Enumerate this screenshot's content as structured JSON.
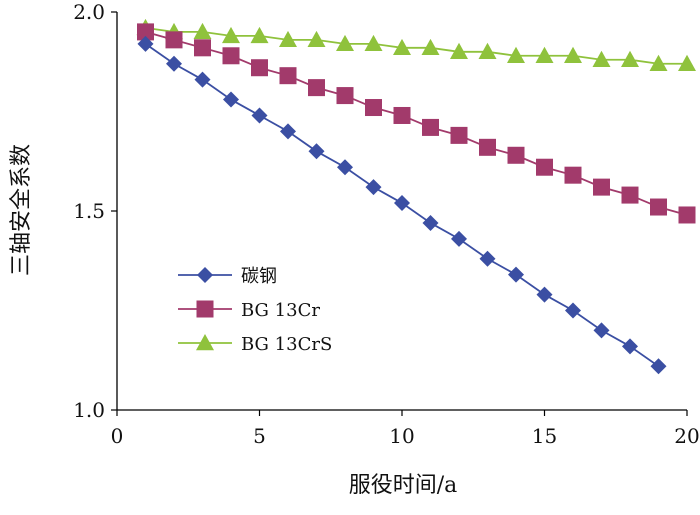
{
  "chart_data": {
    "type": "line",
    "xlabel": "服役时间/a",
    "ylabel": "三轴安全系数",
    "xlim": [
      0,
      20
    ],
    "ylim": [
      1.0,
      2.0
    ],
    "x_ticks": [
      "0",
      "5",
      "10",
      "15",
      "20"
    ],
    "y_ticks": [
      "1.0",
      "1.5",
      "2.0"
    ],
    "grid": false,
    "legend_position": "lower-left",
    "series": [
      {
        "name": "碳钢",
        "marker": "diamond",
        "color": "#3b4fa3",
        "x": [
          1,
          2,
          3,
          4,
          5,
          6,
          7,
          8,
          9,
          10,
          11,
          12,
          13,
          14,
          15,
          16,
          17,
          18,
          19
        ],
        "y": [
          1.92,
          1.87,
          1.83,
          1.78,
          1.74,
          1.7,
          1.65,
          1.61,
          1.56,
          1.52,
          1.47,
          1.43,
          1.38,
          1.34,
          1.29,
          1.25,
          1.2,
          1.16,
          1.11
        ]
      },
      {
        "name": "BG 13Cr",
        "marker": "square",
        "color": "#a23a6b",
        "x": [
          1,
          2,
          3,
          4,
          5,
          6,
          7,
          8,
          9,
          10,
          11,
          12,
          13,
          14,
          15,
          16,
          17,
          18,
          19,
          20
        ],
        "y": [
          1.95,
          1.93,
          1.91,
          1.89,
          1.86,
          1.84,
          1.81,
          1.79,
          1.76,
          1.74,
          1.71,
          1.69,
          1.66,
          1.64,
          1.61,
          1.59,
          1.56,
          1.54,
          1.51,
          1.49
        ]
      },
      {
        "name": "BG 13CrS",
        "marker": "triangle",
        "color": "#8fc23c",
        "x": [
          1,
          2,
          3,
          4,
          5,
          6,
          7,
          8,
          9,
          10,
          11,
          12,
          13,
          14,
          15,
          16,
          17,
          18,
          19,
          20
        ],
        "y": [
          1.96,
          1.95,
          1.95,
          1.94,
          1.94,
          1.93,
          1.93,
          1.92,
          1.92,
          1.91,
          1.91,
          1.9,
          1.9,
          1.89,
          1.89,
          1.89,
          1.88,
          1.88,
          1.87,
          1.87
        ]
      }
    ]
  }
}
